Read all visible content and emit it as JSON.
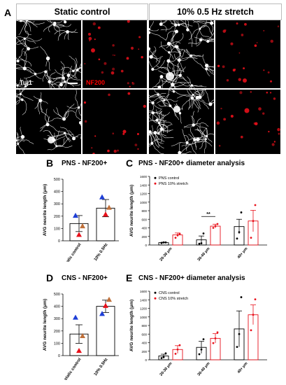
{
  "panel_letters": {
    "a": "A",
    "b": "B",
    "c": "C",
    "d": "D",
    "e": "E"
  },
  "panel_a": {
    "headers": [
      "Static control",
      "10% 0.5 Hz stretch"
    ],
    "label_tuj": "Tuj1",
    "label_nf": "NF200",
    "colors": {
      "tuj": "#ffffff",
      "nf": "#e8101a",
      "bg": "#000000"
    }
  },
  "panel_b": {
    "title": "PNS - NF200+"
  },
  "panel_c": {
    "title": "PNS - NF200+ diameter analysis"
  },
  "panel_d": {
    "title": "CNS - NF200+"
  },
  "panel_e": {
    "title": "CNS - NF200+ diameter analysis"
  },
  "chart_data": [
    {
      "panel": "B",
      "type": "bar",
      "title": "PNS - NF200+",
      "ylabel": "AVG neurite length (μm)",
      "categories": [
        "static control",
        "10% 0.5Hz"
      ],
      "values": [
        140,
        265
      ],
      "errors": [
        65,
        70
      ],
      "ylim": [
        0,
        500
      ],
      "yticks": [
        0,
        100,
        200,
        300,
        400,
        500
      ],
      "points": [
        {
          "category": 0,
          "value": 205,
          "color": "#1f3fd6",
          "marker": "triangle"
        },
        {
          "category": 0,
          "value": 50,
          "color": "#e8101a",
          "marker": "triangle"
        },
        {
          "category": 0,
          "value": 120,
          "color": "#c0703a",
          "marker": "triangle"
        },
        {
          "category": 1,
          "value": 355,
          "color": "#1f3fd6",
          "marker": "triangle"
        },
        {
          "category": 1,
          "value": 215,
          "color": "#e8101a",
          "marker": "triangle"
        },
        {
          "category": 1,
          "value": 270,
          "color": "#c0703a",
          "marker": "triangle"
        }
      ]
    },
    {
      "panel": "C",
      "type": "bar",
      "title": "PNS - NF200+ diameter analysis",
      "ylabel": "AVG neurite length (μm)",
      "categories": [
        "20-30 μm",
        "30-40 μm",
        "40+ μm"
      ],
      "ylim": [
        0,
        1600
      ],
      "yticks": [
        0,
        200,
        400,
        600,
        800,
        1000,
        1200,
        1400,
        1600
      ],
      "series": [
        {
          "name": "PNS control",
          "color": "#000000",
          "values": [
            55,
            120,
            430
          ],
          "errors": [
            10,
            90,
            170
          ],
          "points": [
            [
              45,
              60,
              60
            ],
            [
              30,
              40,
              270
            ],
            [
              150,
              300,
              760
            ]
          ]
        },
        {
          "name": "PNS 10% stretch",
          "color": "#e8101a",
          "values": [
            235,
            440,
            560
          ],
          "errors": [
            45,
            45,
            250
          ],
          "points": [
            [
              170,
              230,
              260
            ],
            [
              400,
              440,
              490
            ],
            [
              170,
              560,
              930
            ]
          ]
        }
      ],
      "annotation": {
        "text": "**",
        "category": 1
      }
    },
    {
      "panel": "D",
      "type": "bar",
      "title": "CNS - NF200+",
      "ylabel": "AVG neurite length (μm)",
      "categories": [
        "static control",
        "10% 0.5Hz"
      ],
      "values": [
        175,
        400
      ],
      "errors": [
        75,
        50
      ],
      "ylim": [
        0,
        500
      ],
      "yticks": [
        0,
        100,
        200,
        300,
        400,
        500
      ],
      "points": [
        {
          "category": 0,
          "value": 310,
          "color": "#1f3fd6",
          "marker": "triangle"
        },
        {
          "category": 0,
          "value": 40,
          "color": "#e8101a",
          "marker": "triangle"
        },
        {
          "category": 0,
          "value": 160,
          "color": "#c0703a",
          "marker": "triangle"
        },
        {
          "category": 1,
          "value": 340,
          "color": "#1f3fd6",
          "marker": "triangle"
        },
        {
          "category": 1,
          "value": 405,
          "color": "#e8101a",
          "marker": "triangle"
        },
        {
          "category": 1,
          "value": 455,
          "color": "#c0703a",
          "marker": "triangle"
        }
      ]
    },
    {
      "panel": "E",
      "type": "bar",
      "title": "CNS - NF200+ diameter analysis",
      "ylabel": "AVG neurite length (μm)",
      "categories": [
        "20-30 μm",
        "30-40 μm",
        "40+ μm"
      ],
      "ylim": [
        0,
        1600
      ],
      "yticks": [
        0,
        200,
        400,
        600,
        800,
        1000,
        1200,
        1400,
        1600
      ],
      "series": [
        {
          "name": "CNS control",
          "color": "#000000",
          "values": [
            90,
            290,
            720
          ],
          "errors": [
            40,
            140,
            420
          ],
          "points": [
            [
              40,
              60,
              150
            ],
            [
              130,
              240,
              480
            ],
            [
              300,
              600,
              1460
            ]
          ]
        },
        {
          "name": "CNS 10% stretch",
          "color": "#e8101a",
          "values": [
            240,
            500,
            1050
          ],
          "errors": [
            90,
            110,
            230
          ],
          "points": [
            [
              140,
              240,
              340
            ],
            [
              390,
              500,
              640
            ],
            [
              690,
              1050,
              1410
            ]
          ]
        }
      ]
    }
  ]
}
